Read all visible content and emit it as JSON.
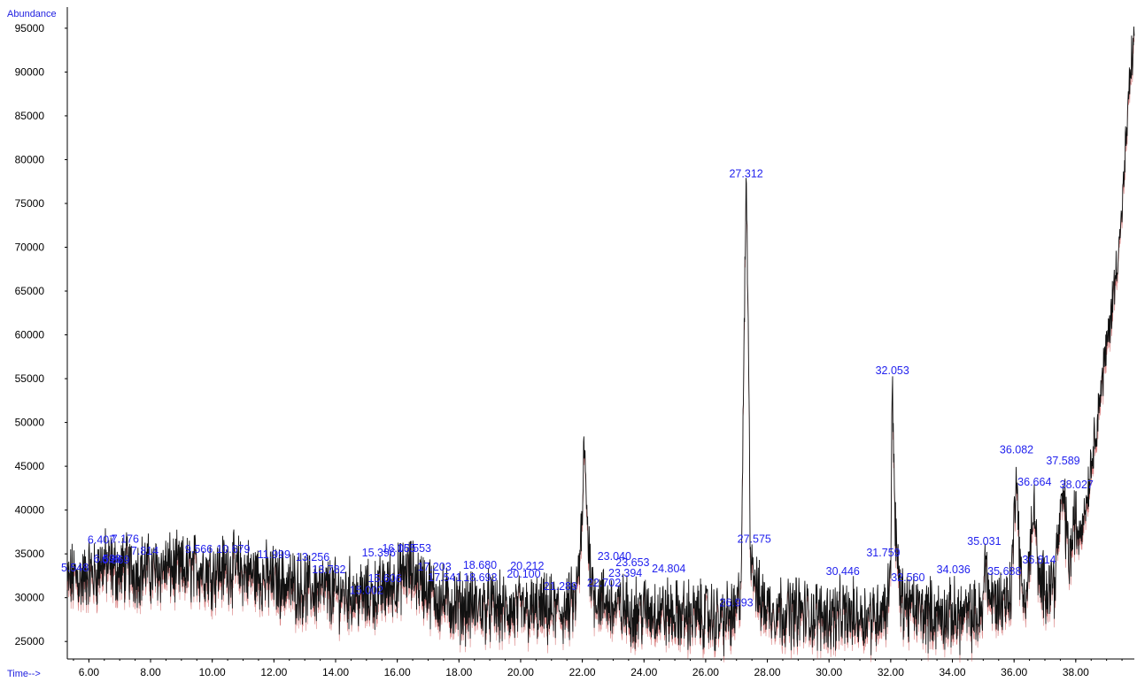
{
  "chart_data": {
    "type": "line",
    "title": "",
    "xlabel": "Time-->",
    "ylabel": "Abundance",
    "xlim": [
      5.3,
      39.9
    ],
    "ylim": [
      23000,
      96000
    ],
    "x_ticks": [
      "6.00",
      "8.00",
      "10.00",
      "12.00",
      "14.00",
      "16.00",
      "18.00",
      "20.00",
      "22.00",
      "24.00",
      "26.00",
      "28.00",
      "30.00",
      "32.00",
      "34.00",
      "36.00",
      "38.00"
    ],
    "y_ticks": [
      "25000",
      "30000",
      "35000",
      "40000",
      "45000",
      "50000",
      "55000",
      "60000",
      "65000",
      "70000",
      "75000",
      "80000",
      "85000",
      "90000",
      "95000"
    ],
    "series": [
      {
        "x": [
          5.3,
          5.5,
          5.8,
          6.0,
          6.2,
          6.4,
          6.7,
          7.0,
          7.2,
          7.5,
          7.8,
          8.0,
          8.5,
          9.0,
          9.5,
          10.0,
          10.5,
          11.0,
          11.5,
          12.0,
          12.5,
          13.0,
          13.5,
          14.0,
          14.5,
          15.0,
          15.3,
          15.6,
          16.0,
          16.3,
          16.6,
          17.0,
          17.3,
          17.6,
          18.0,
          18.5,
          19.0,
          19.5,
          20.0,
          20.5,
          21.0,
          21.5,
          21.8,
          22.0,
          22.05,
          22.1,
          22.2,
          22.35,
          22.5,
          22.7,
          23.0,
          23.5,
          24.0,
          24.5,
          25.0,
          25.5,
          26.0,
          26.5,
          27.0,
          27.15,
          27.25,
          27.312,
          27.38,
          27.45,
          27.575,
          27.7,
          28.0,
          28.5,
          29.0,
          29.5,
          30.0,
          30.5,
          31.0,
          31.5,
          31.759,
          31.9,
          32.0,
          32.053,
          32.15,
          32.3,
          32.56,
          33.0,
          33.5,
          34.0,
          34.5,
          35.0,
          35.031,
          35.2,
          35.5,
          35.9,
          36.082,
          36.2,
          36.4,
          36.664,
          36.8,
          37.0,
          37.3,
          37.589,
          37.8,
          38.0,
          38.027,
          38.3,
          38.6,
          38.9,
          39.2,
          39.5,
          39.7,
          39.85
        ],
        "y": [
          31500,
          32500,
          32000,
          33000,
          32500,
          34000,
          33500,
          33000,
          33500,
          33000,
          33500,
          33000,
          33500,
          33000,
          33500,
          33000,
          33500,
          33000,
          32500,
          32000,
          31500,
          31000,
          31000,
          30500,
          30500,
          30000,
          30500,
          31000,
          32000,
          33000,
          32500,
          31000,
          30000,
          29500,
          29000,
          29000,
          29000,
          28500,
          28500,
          28500,
          28500,
          28500,
          30000,
          38000,
          48000,
          44000,
          36000,
          31000,
          30000,
          29500,
          29000,
          28500,
          28500,
          28500,
          28000,
          28000,
          28000,
          27500,
          28000,
          32000,
          60000,
          78000,
          62000,
          36000,
          33000,
          30000,
          29000,
          28500,
          28500,
          28000,
          28000,
          28000,
          28000,
          28000,
          29000,
          29000,
          35000,
          55000,
          38000,
          30000,
          29000,
          28500,
          28000,
          28000,
          28000,
          28000,
          36000,
          30000,
          29500,
          30500,
          45000,
          32000,
          30000,
          41000,
          31000,
          31500,
          32000,
          42000,
          34000,
          40000,
          37000,
          40000,
          48000,
          56000,
          64000,
          74000,
          86000,
          93000
        ]
      }
    ],
    "peaks": [
      {
        "x": 5.548,
        "y": 33000,
        "label": "5.548"
      },
      {
        "x": 6.407,
        "y": 36200,
        "label": "6.407"
      },
      {
        "x": 6.598,
        "y": 34000,
        "label": "6.598"
      },
      {
        "x": 6.869,
        "y": 33900,
        "label": "6.869"
      },
      {
        "x": 7.176,
        "y": 36300,
        "label": "7.176"
      },
      {
        "x": 7.814,
        "y": 34900,
        "label": "7.814"
      },
      {
        "x": 9.566,
        "y": 35100,
        "label": "9.566"
      },
      {
        "x": 10.679,
        "y": 35100,
        "label": "10.679"
      },
      {
        "x": 11.999,
        "y": 34500,
        "label": "11.999"
      },
      {
        "x": 13.256,
        "y": 34200,
        "label": "13.256"
      },
      {
        "x": 13.782,
        "y": 32800,
        "label": "13.782"
      },
      {
        "x": 15.002,
        "y": 30400,
        "label": "15.002"
      },
      {
        "x": 15.6,
        "y": 31800,
        "label": "15.606"
      },
      {
        "x": 15.4,
        "y": 34700,
        "label": "15.396"
      },
      {
        "x": 16.055,
        "y": 35200,
        "label": "16.055"
      },
      {
        "x": 16.553,
        "y": 35200,
        "label": "16.553"
      },
      {
        "x": 17.203,
        "y": 33100,
        "label": "17.203"
      },
      {
        "x": 17.541,
        "y": 31900,
        "label": "17.541"
      },
      {
        "x": 18.68,
        "y": 33300,
        "label": "18.680"
      },
      {
        "x": 18.69,
        "y": 31900,
        "label": "18.693"
      },
      {
        "x": 20.212,
        "y": 33200,
        "label": "20.212"
      },
      {
        "x": 20.1,
        "y": 32300,
        "label": "20.100"
      },
      {
        "x": 21.289,
        "y": 30900,
        "label": "21.289"
      },
      {
        "x": 22.702,
        "y": 31300,
        "label": "22.702"
      },
      {
        "x": 23.04,
        "y": 34300,
        "label": "23.040"
      },
      {
        "x": 23.394,
        "y": 32400,
        "label": "23.394"
      },
      {
        "x": 23.63,
        "y": 33600,
        "label": "23.653"
      },
      {
        "x": 24.804,
        "y": 32900,
        "label": "24.804"
      },
      {
        "x": 26.993,
        "y": 29000,
        "label": "26.993"
      },
      {
        "x": 27.312,
        "y": 78000,
        "label": "27.312"
      },
      {
        "x": 27.575,
        "y": 36300,
        "label": "27.575"
      },
      {
        "x": 30.446,
        "y": 32600,
        "label": "30.446"
      },
      {
        "x": 31.759,
        "y": 34700,
        "label": "31.759"
      },
      {
        "x": 32.053,
        "y": 55500,
        "label": "32.053"
      },
      {
        "x": 32.56,
        "y": 31900,
        "label": "32.560"
      },
      {
        "x": 34.036,
        "y": 32800,
        "label": "34.036"
      },
      {
        "x": 35.031,
        "y": 36000,
        "label": "35.031"
      },
      {
        "x": 35.688,
        "y": 32600,
        "label": "35.688"
      },
      {
        "x": 36.082,
        "y": 46500,
        "label": "36.082"
      },
      {
        "x": 36.664,
        "y": 42800,
        "label": "36.664"
      },
      {
        "x": 36.814,
        "y": 33900,
        "label": "36.814"
      },
      {
        "x": 37.589,
        "y": 45200,
        "label": "37.589"
      },
      {
        "x": 38.027,
        "y": 42500,
        "label": "38.027"
      }
    ]
  }
}
